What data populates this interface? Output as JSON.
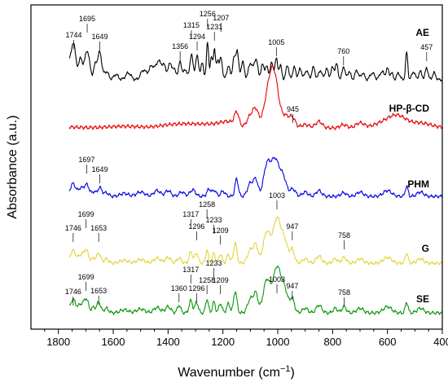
{
  "chart_data": {
    "type": "line",
    "xlabel_text": "Wavenumber (cm",
    "xlabel_sup": "−1",
    "xlabel_close": ")",
    "ylabel": "Absorbance (a.u.)",
    "xlim": [
      1900,
      400
    ],
    "x_reversed": true,
    "xticks": [
      1800,
      1600,
      1400,
      1200,
      1000,
      800,
      600,
      400
    ],
    "series": [
      {
        "name": "AE",
        "color": "#000000",
        "peak_labels": [
          "1744",
          "1695",
          "1649",
          "1356",
          "1315",
          "1294",
          "1256",
          "1231",
          "1207",
          "1005",
          "760",
          "457"
        ]
      },
      {
        "name": "HP-β-CD",
        "color": "#e60000",
        "peak_labels": [
          "945"
        ]
      },
      {
        "name": "PHM",
        "color": "#0000e6",
        "peak_labels": [
          "1697",
          "1649"
        ]
      },
      {
        "name": "G",
        "color": "#e6d23c",
        "peak_labels": [
          "1746",
          "1699",
          "1653",
          "1317",
          "1296",
          "1258",
          "1233",
          "1209",
          "1003",
          "947",
          "758"
        ]
      },
      {
        "name": "SE",
        "color": "#0a960a",
        "peak_labels": [
          "1746",
          "1699",
          "1653",
          "1360",
          "1317",
          "1296",
          "1258",
          "1233",
          "1209",
          "1003",
          "947",
          "758"
        ]
      }
    ]
  }
}
